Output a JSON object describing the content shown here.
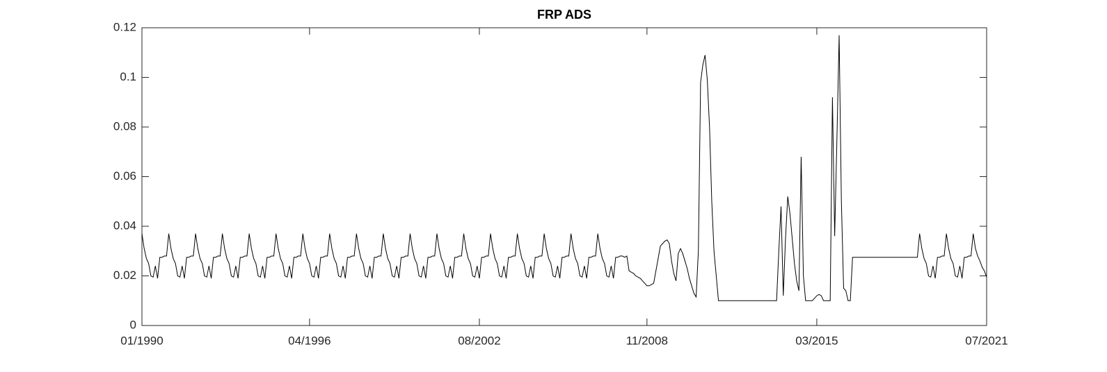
{
  "chart_data": {
    "type": "line",
    "title": "FRP ADS",
    "color": "#000000",
    "x": [
      "01/1990",
      "02/1990",
      "03/1990",
      "04/1990",
      "05/1990",
      "06/1990",
      "07/1990",
      "08/1990",
      "09/1990",
      "10/1990",
      "11/1990",
      "12/1990",
      "01/1991",
      "02/1991",
      "03/1991",
      "04/1991",
      "05/1991",
      "06/1991",
      "07/1991",
      "08/1991",
      "09/1991",
      "10/1991",
      "11/1991",
      "12/1991",
      "01/1992",
      "02/1992",
      "03/1992",
      "04/1992",
      "05/1992",
      "06/1992",
      "07/1992",
      "08/1992",
      "09/1992",
      "10/1992",
      "11/1992",
      "12/1992",
      "01/1993",
      "02/1993",
      "03/1993",
      "04/1993",
      "05/1993",
      "06/1993",
      "07/1993",
      "08/1993",
      "09/1993",
      "10/1993",
      "11/1993",
      "12/1993",
      "01/1994",
      "02/1994",
      "03/1994",
      "04/1994",
      "05/1994",
      "06/1994",
      "07/1994",
      "08/1994",
      "09/1994",
      "10/1994",
      "11/1994",
      "12/1994",
      "01/1995",
      "02/1995",
      "03/1995",
      "04/1995",
      "05/1995",
      "06/1995",
      "07/1995",
      "08/1995",
      "09/1995",
      "10/1995",
      "11/1995",
      "12/1995",
      "01/1996",
      "02/1996",
      "03/1996",
      "04/1996",
      "05/1996",
      "06/1996",
      "07/1996",
      "08/1996",
      "09/1996",
      "10/1996",
      "11/1996",
      "12/1996",
      "01/1997",
      "02/1997",
      "03/1997",
      "04/1997",
      "05/1997",
      "06/1997",
      "07/1997",
      "08/1997",
      "09/1997",
      "10/1997",
      "11/1997",
      "12/1997",
      "01/1998",
      "02/1998",
      "03/1998",
      "04/1998",
      "05/1998",
      "06/1998",
      "07/1998",
      "08/1998",
      "09/1998",
      "10/1998",
      "11/1998",
      "12/1998",
      "01/1999",
      "02/1999",
      "03/1999",
      "04/1999",
      "05/1999",
      "06/1999",
      "07/1999",
      "08/1999",
      "09/1999",
      "10/1999",
      "11/1999",
      "12/1999",
      "01/2000",
      "02/2000",
      "03/2000",
      "04/2000",
      "05/2000",
      "06/2000",
      "07/2000",
      "08/2000",
      "09/2000",
      "10/2000",
      "11/2000",
      "12/2000",
      "01/2001",
      "02/2001",
      "03/2001",
      "04/2001",
      "05/2001",
      "06/2001",
      "07/2001",
      "08/2001",
      "09/2001",
      "10/2001",
      "11/2001",
      "12/2001",
      "01/2002",
      "02/2002",
      "03/2002",
      "04/2002",
      "05/2002",
      "06/2002",
      "07/2002",
      "08/2002",
      "09/2002",
      "10/2002",
      "11/2002",
      "12/2002",
      "01/2003",
      "02/2003",
      "03/2003",
      "04/2003",
      "05/2003",
      "06/2003",
      "07/2003",
      "08/2003",
      "09/2003",
      "10/2003",
      "11/2003",
      "12/2003",
      "01/2004",
      "02/2004",
      "03/2004",
      "04/2004",
      "05/2004",
      "06/2004",
      "07/2004",
      "08/2004",
      "09/2004",
      "10/2004",
      "11/2004",
      "12/2004",
      "01/2005",
      "02/2005",
      "03/2005",
      "04/2005",
      "05/2005",
      "06/2005",
      "07/2005",
      "08/2005",
      "09/2005",
      "10/2005",
      "11/2005",
      "12/2005",
      "01/2006",
      "02/2006",
      "03/2006",
      "04/2006",
      "05/2006",
      "06/2006",
      "07/2006",
      "08/2006",
      "09/2006",
      "10/2006",
      "11/2006",
      "12/2006",
      "01/2007",
      "02/2007",
      "03/2007",
      "04/2007",
      "05/2007",
      "06/2007",
      "07/2007",
      "08/2007",
      "09/2007",
      "10/2007",
      "11/2007",
      "12/2007",
      "01/2008",
      "02/2008",
      "03/2008",
      "04/2008",
      "05/2008",
      "06/2008",
      "07/2008",
      "08/2008",
      "09/2008",
      "10/2008",
      "11/2008",
      "12/2008",
      "01/2009",
      "02/2009",
      "03/2009",
      "04/2009",
      "05/2009",
      "06/2009",
      "07/2009",
      "08/2009",
      "09/2009",
      "10/2009",
      "11/2009",
      "12/2009",
      "01/2010",
      "02/2010",
      "03/2010",
      "04/2010",
      "05/2010",
      "06/2010",
      "07/2010",
      "08/2010",
      "09/2010",
      "10/2010",
      "11/2010",
      "12/2010",
      "01/2011",
      "02/2011",
      "03/2011",
      "04/2011",
      "05/2011",
      "06/2011",
      "07/2011",
      "09/2013",
      "10/2013",
      "11/2013",
      "12/2013",
      "01/2014",
      "02/2014",
      "03/2014",
      "04/2014",
      "05/2014",
      "06/2014",
      "07/2014",
      "08/2014",
      "09/2014",
      "10/2014",
      "11/2014",
      "12/2014",
      "01/2015",
      "02/2015",
      "03/2015",
      "04/2015",
      "05/2015",
      "06/2015",
      "07/2015",
      "08/2015",
      "09/2015",
      "10/2015",
      "11/2015",
      "12/2015",
      "01/2016",
      "02/2016",
      "03/2016",
      "04/2016",
      "05/2016",
      "06/2016",
      "07/2016",
      "12/2018",
      "01/2019",
      "02/2019",
      "03/2019",
      "04/2019",
      "05/2019",
      "06/2019",
      "07/2019",
      "08/2019",
      "09/2019",
      "10/2019",
      "11/2019",
      "12/2019",
      "01/2020",
      "02/2020",
      "03/2020",
      "04/2020",
      "05/2020",
      "06/2020",
      "07/2020",
      "08/2020",
      "09/2020",
      "10/2020",
      "11/2020",
      "12/2020",
      "01/2021",
      "02/2021",
      "03/2021",
      "04/2021",
      "05/2021",
      "06/2021",
      "07/2021"
    ],
    "values": [
      0.037,
      0.031,
      0.027,
      0.025,
      0.02,
      0.0195,
      0.024,
      0.019,
      0.0275,
      0.0275,
      0.028,
      0.028,
      0.037,
      0.031,
      0.027,
      0.025,
      0.02,
      0.0195,
      0.024,
      0.019,
      0.0275,
      0.0275,
      0.028,
      0.028,
      0.037,
      0.031,
      0.027,
      0.025,
      0.02,
      0.0195,
      0.024,
      0.019,
      0.0275,
      0.0275,
      0.028,
      0.028,
      0.037,
      0.031,
      0.027,
      0.025,
      0.02,
      0.0195,
      0.024,
      0.019,
      0.0275,
      0.0275,
      0.028,
      0.028,
      0.037,
      0.031,
      0.027,
      0.025,
      0.02,
      0.0195,
      0.024,
      0.019,
      0.0275,
      0.0275,
      0.028,
      0.028,
      0.037,
      0.031,
      0.027,
      0.025,
      0.02,
      0.0195,
      0.024,
      0.019,
      0.0275,
      0.0275,
      0.028,
      0.028,
      0.037,
      0.031,
      0.027,
      0.025,
      0.02,
      0.0195,
      0.024,
      0.019,
      0.0275,
      0.0275,
      0.028,
      0.028,
      0.037,
      0.031,
      0.027,
      0.025,
      0.02,
      0.0195,
      0.024,
      0.019,
      0.0275,
      0.0275,
      0.028,
      0.028,
      0.037,
      0.031,
      0.027,
      0.025,
      0.02,
      0.0195,
      0.024,
      0.019,
      0.0275,
      0.0275,
      0.028,
      0.028,
      0.037,
      0.031,
      0.027,
      0.025,
      0.02,
      0.0195,
      0.024,
      0.019,
      0.0275,
      0.0275,
      0.028,
      0.028,
      0.037,
      0.031,
      0.027,
      0.025,
      0.02,
      0.0195,
      0.024,
      0.019,
      0.0275,
      0.0275,
      0.028,
      0.028,
      0.037,
      0.031,
      0.027,
      0.025,
      0.02,
      0.0195,
      0.024,
      0.019,
      0.0275,
      0.0275,
      0.028,
      0.028,
      0.037,
      0.031,
      0.027,
      0.025,
      0.02,
      0.0195,
      0.024,
      0.019,
      0.0275,
      0.0275,
      0.028,
      0.028,
      0.037,
      0.031,
      0.027,
      0.025,
      0.02,
      0.0195,
      0.024,
      0.019,
      0.0275,
      0.0275,
      0.028,
      0.028,
      0.037,
      0.031,
      0.027,
      0.025,
      0.02,
      0.0195,
      0.024,
      0.019,
      0.0275,
      0.0275,
      0.028,
      0.028,
      0.037,
      0.031,
      0.027,
      0.025,
      0.02,
      0.0195,
      0.024,
      0.019,
      0.0275,
      0.0275,
      0.028,
      0.028,
      0.037,
      0.031,
      0.027,
      0.025,
      0.02,
      0.0195,
      0.024,
      0.019,
      0.0275,
      0.0275,
      0.028,
      0.028,
      0.037,
      0.031,
      0.027,
      0.025,
      0.02,
      0.0195,
      0.024,
      0.019,
      0.0275,
      0.0275,
      0.028,
      0.028,
      0.0275,
      0.028,
      0.022,
      0.0215,
      0.021,
      0.02,
      0.0195,
      0.019,
      0.018,
      0.017,
      0.016,
      0.016,
      0.0165,
      0.017,
      0.022,
      0.027,
      0.032,
      0.033,
      0.034,
      0.0345,
      0.033,
      0.026,
      0.021,
      0.018,
      0.029,
      0.031,
      0.029,
      0.026,
      0.023,
      0.019,
      0.016,
      0.013,
      0.0115,
      0.03,
      0.098,
      0.105,
      0.109,
      0.099,
      0.08,
      0.05,
      0.03,
      0.02,
      0.01,
      0.01,
      0.03,
      0.048,
      0.012,
      0.035,
      0.052,
      0.045,
      0.035,
      0.025,
      0.018,
      0.014,
      0.068,
      0.02,
      0.01,
      0.01,
      0.01,
      0.01,
      0.011,
      0.012,
      0.0125,
      0.012,
      0.01,
      0.01,
      0.01,
      0.01,
      0.092,
      0.036,
      0.075,
      0.117,
      0.05,
      0.015,
      0.014,
      0.01,
      0.01,
      0.0275,
      0.0275,
      0.037,
      0.031,
      0.027,
      0.025,
      0.02,
      0.0195,
      0.024,
      0.019,
      0.0275,
      0.0275,
      0.028,
      0.028,
      0.037,
      0.031,
      0.027,
      0.025,
      0.02,
      0.0195,
      0.024,
      0.019,
      0.0275,
      0.0275,
      0.028,
      0.028,
      0.037,
      0.031,
      0.028,
      0.026,
      0.0235,
      0.022,
      0.0195
    ],
    "xlim": [
      "01/1990",
      "07/2021"
    ],
    "xticks": [
      "01/1990",
      "04/1996",
      "08/2002",
      "11/2008",
      "03/2015",
      "07/2021"
    ],
    "ylim": [
      0,
      0.12
    ],
    "yticks": [
      0,
      0.02,
      0.04,
      0.06,
      0.08,
      0.1,
      0.12
    ],
    "grid": false
  }
}
